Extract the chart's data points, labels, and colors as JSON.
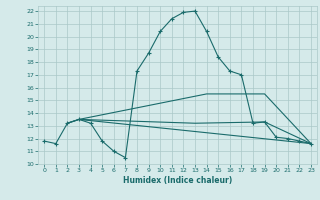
{
  "xlabel": "Humidex (Indice chaleur)",
  "xlim": [
    -0.5,
    23.5
  ],
  "ylim": [
    10,
    22.4
  ],
  "yticks": [
    10,
    11,
    12,
    13,
    14,
    15,
    16,
    17,
    18,
    19,
    20,
    21,
    22
  ],
  "xticks": [
    0,
    1,
    2,
    3,
    4,
    5,
    6,
    7,
    8,
    9,
    10,
    11,
    12,
    13,
    14,
    15,
    16,
    17,
    18,
    19,
    20,
    21,
    22,
    23
  ],
  "bg_color": "#d5eaea",
  "grid_color": "#aac8c8",
  "line_color": "#1a6b6b",
  "line1_x": [
    0,
    1,
    2,
    3,
    4,
    5,
    6,
    7,
    8,
    9,
    10,
    11,
    12,
    13,
    14,
    15,
    16,
    17,
    18,
    19,
    20,
    21,
    22,
    23
  ],
  "line1_y": [
    11.8,
    11.6,
    13.2,
    13.5,
    13.2,
    11.8,
    11.0,
    10.5,
    17.3,
    18.7,
    20.4,
    21.4,
    21.9,
    22.0,
    20.4,
    18.4,
    17.3,
    17.0,
    13.2,
    13.3,
    12.1,
    12.0,
    11.8,
    11.6
  ],
  "line2_x": [
    2,
    3,
    23
  ],
  "line2_y": [
    13.2,
    13.5,
    11.6
  ],
  "line3_x": [
    2,
    3,
    13,
    19,
    23
  ],
  "line3_y": [
    13.2,
    13.5,
    13.2,
    13.3,
    11.6
  ],
  "line4_x": [
    3,
    14,
    19,
    23
  ],
  "line4_y": [
    13.5,
    15.5,
    15.5,
    11.6
  ]
}
